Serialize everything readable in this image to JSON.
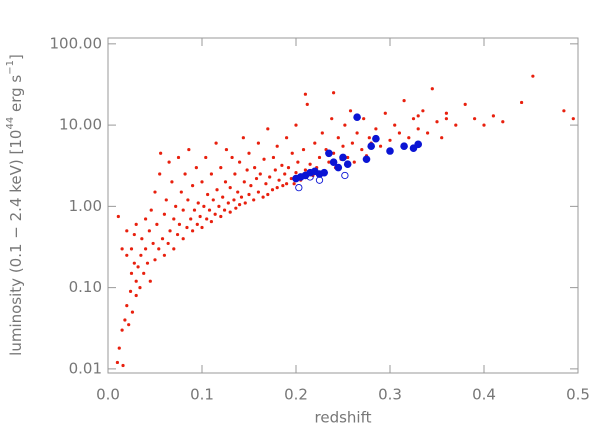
{
  "chart_data": {
    "type": "scatter",
    "x_label": "redshift",
    "y_label_parts": [
      "luminosity (0.1 − 2.4 keV) [10",
      "44",
      " erg s",
      "−1",
      "]"
    ],
    "xlim": [
      0,
      0.5
    ],
    "ylim": [
      0.0089,
      118
    ],
    "log_y": true,
    "xticks": [
      {
        "value": 0,
        "label": "0.0"
      },
      0.1,
      0.2,
      0.3,
      0.4,
      0.5
    ],
    "yticks": [
      0.01,
      {
        "value": 0.1,
        "label": "0.10"
      },
      {
        "value": 1,
        "label": "1.00"
      },
      {
        "value": 10,
        "label": "10.00"
      },
      {
        "value": 100,
        "label": "100.00"
      }
    ],
    "series": [
      {
        "color": "#e8200e",
        "marker": "dot",
        "x": [
          0.01,
          0.012,
          0.015,
          0.016,
          0.018,
          0.02,
          0.022,
          0.024,
          0.025,
          0.026,
          0.028,
          0.03,
          0.03,
          0.011,
          0.015,
          0.02,
          0.02,
          0.025,
          0.028,
          0.03,
          0.032,
          0.034,
          0.035,
          0.036,
          0.038,
          0.04,
          0.04,
          0.042,
          0.044,
          0.045,
          0.046,
          0.048,
          0.05,
          0.05,
          0.052,
          0.054,
          0.055,
          0.056,
          0.058,
          0.06,
          0.06,
          0.062,
          0.064,
          0.065,
          0.066,
          0.068,
          0.07,
          0.07,
          0.072,
          0.074,
          0.075,
          0.076,
          0.078,
          0.08,
          0.08,
          0.082,
          0.084,
          0.085,
          0.086,
          0.088,
          0.09,
          0.09,
          0.092,
          0.094,
          0.095,
          0.096,
          0.098,
          0.1,
          0.1,
          0.102,
          0.104,
          0.105,
          0.106,
          0.108,
          0.11,
          0.11,
          0.112,
          0.114,
          0.115,
          0.116,
          0.118,
          0.12,
          0.12,
          0.122,
          0.124,
          0.125,
          0.126,
          0.128,
          0.13,
          0.13,
          0.132,
          0.134,
          0.135,
          0.136,
          0.138,
          0.14,
          0.14,
          0.142,
          0.144,
          0.145,
          0.146,
          0.148,
          0.15,
          0.15,
          0.152,
          0.155,
          0.156,
          0.158,
          0.16,
          0.16,
          0.162,
          0.165,
          0.166,
          0.168,
          0.17,
          0.17,
          0.172,
          0.175,
          0.176,
          0.178,
          0.18,
          0.18,
          0.182,
          0.185,
          0.186,
          0.188,
          0.19,
          0.19,
          0.192,
          0.195,
          0.196,
          0.198,
          0.2,
          0.2,
          0.202,
          0.205,
          0.208,
          0.21,
          0.212,
          0.215,
          0.218,
          0.22,
          0.222,
          0.225,
          0.228,
          0.23,
          0.232,
          0.235,
          0.238,
          0.24,
          0.242,
          0.245,
          0.248,
          0.25,
          0.252,
          0.255,
          0.258,
          0.26,
          0.262,
          0.265,
          0.27,
          0.272,
          0.275,
          0.278,
          0.28,
          0.285,
          0.29,
          0.295,
          0.3,
          0.305,
          0.31,
          0.315,
          0.32,
          0.325,
          0.33,
          0.335,
          0.34,
          0.345,
          0.35,
          0.355,
          0.36,
          0.37,
          0.38,
          0.39,
          0.4,
          0.41,
          0.42,
          0.44,
          0.452,
          0.485,
          0.495,
          0.24,
          0.21,
          0.33,
          0.36
        ],
        "values": [
          0.012,
          0.018,
          0.03,
          0.011,
          0.04,
          0.06,
          0.035,
          0.09,
          0.15,
          0.05,
          0.2,
          0.08,
          0.12,
          0.75,
          0.3,
          0.25,
          0.5,
          0.3,
          0.45,
          0.6,
          0.18,
          0.1,
          0.25,
          0.4,
          0.15,
          0.3,
          0.7,
          0.2,
          0.5,
          0.12,
          0.9,
          0.35,
          0.22,
          1.5,
          0.6,
          0.3,
          2.5,
          4.5,
          0.4,
          0.25,
          0.8,
          1.2,
          0.35,
          3.5,
          0.5,
          2,
          0.3,
          0.7,
          1,
          0.45,
          4,
          0.6,
          1.5,
          0.4,
          0.9,
          2.5,
          0.55,
          1.2,
          5,
          0.7,
          0.5,
          1.8,
          0.9,
          3,
          0.6,
          1.1,
          0.75,
          0.55,
          2,
          1,
          4,
          0.7,
          1.4,
          0.9,
          0.65,
          2.5,
          1.2,
          0.8,
          6,
          1.6,
          1,
          0.75,
          3,
          1.3,
          0.9,
          2,
          5,
          1.1,
          0.85,
          1.7,
          4,
          1.2,
          2.5,
          0.95,
          1.5,
          1.05,
          3.5,
          1.3,
          7,
          2,
          1.1,
          2.8,
          1.4,
          4.5,
          1.8,
          1.2,
          3,
          2.2,
          1.5,
          6,
          2.5,
          1.3,
          3.8,
          1.9,
          1.4,
          9,
          2.3,
          1.6,
          4,
          2.8,
          1.7,
          5.5,
          2.1,
          3.2,
          1.8,
          2.5,
          1.9,
          7,
          3,
          2.2,
          4.5,
          1.9,
          2.6,
          10,
          3.5,
          2.1,
          5,
          2.8,
          18,
          3.3,
          2.4,
          6,
          3,
          4,
          8,
          2.7,
          5,
          3.5,
          12,
          4.5,
          3,
          7,
          3.8,
          5.5,
          10,
          4,
          15,
          6,
          3.5,
          8,
          5,
          12,
          4.2,
          7,
          6,
          9,
          5.5,
          14,
          6.5,
          10,
          8,
          20,
          7,
          12,
          9,
          15,
          8,
          28,
          11,
          7,
          14,
          10,
          18,
          12,
          10,
          13,
          11,
          19,
          40,
          15,
          12,
          25,
          24,
          13,
          12
        ]
      },
      {
        "color": "#0a14d4",
        "marker": "filled",
        "x": [
          0.2,
          0.205,
          0.21,
          0.215,
          0.22,
          0.225,
          0.23,
          0.235,
          0.24,
          0.245,
          0.25,
          0.255,
          0.265,
          0.275,
          0.28,
          0.285,
          0.3,
          0.315,
          0.325,
          0.33
        ],
        "values": [
          2.2,
          2.3,
          2.4,
          2.6,
          2.7,
          2.5,
          2.6,
          4.5,
          3.5,
          3,
          4,
          3.3,
          12.5,
          3.8,
          5.5,
          6.8,
          4.8,
          5.5,
          5.2,
          5.8
        ]
      },
      {
        "color": "#0a14d4",
        "marker": "open",
        "x": [
          0.203,
          0.225,
          0.252,
          0.215
        ],
        "values": [
          1.7,
          2.1,
          2.4,
          2.3
        ]
      }
    ]
  }
}
